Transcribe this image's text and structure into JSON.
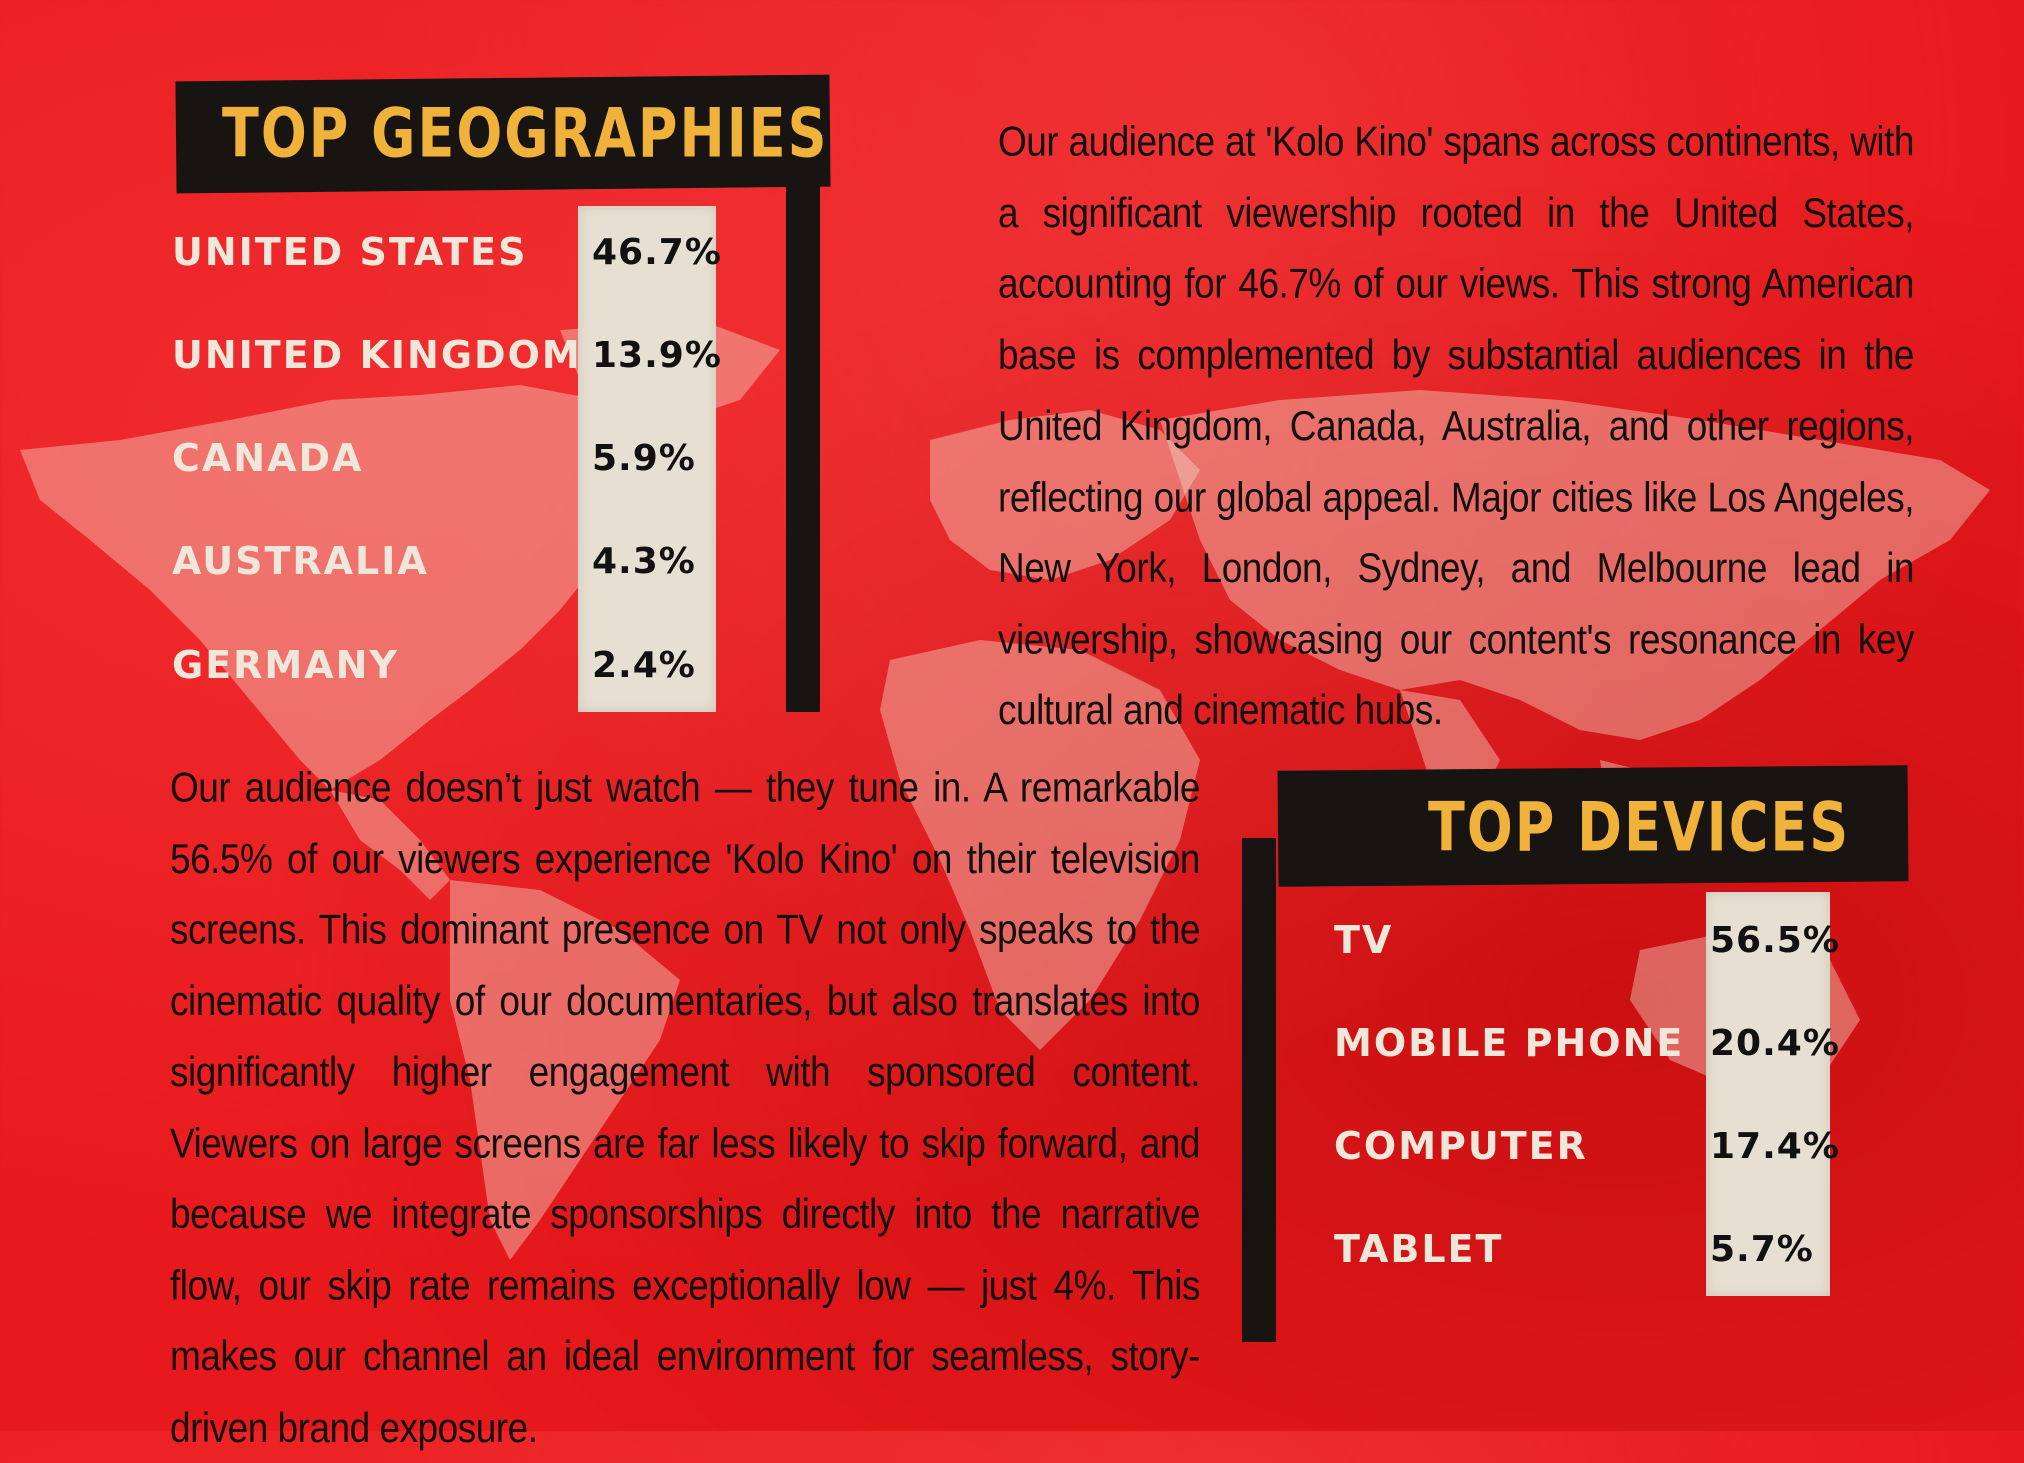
{
  "geographies": {
    "title": "Top Geographies",
    "items": [
      {
        "label": "United States",
        "value": "46.7%"
      },
      {
        "label": "United Kingdom",
        "value": "13.9%"
      },
      {
        "label": "Canada",
        "value": "5.9%"
      },
      {
        "label": "Australia",
        "value": "4.3%"
      },
      {
        "label": "Germany",
        "value": "2.4%"
      }
    ],
    "paragraph": "Our audience at 'Kolo Kino' spans across continents, with a significant viewership rooted in the United States, accounting for 46.7% of our views. This strong American base is complemented by substantial audiences in the United Kingdom, Canada, Australia, and other regions, reflecting our global appeal. Major cities like Los Angeles, New York, London, Sydney, and Melbourne lead in viewership, showcasing our content's resonance in key cultural and cinematic hubs."
  },
  "devices": {
    "title": "Top Devices",
    "items": [
      {
        "label": "TV",
        "value": "56.5%"
      },
      {
        "label": "Mobile Phone",
        "value": "20.4%"
      },
      {
        "label": "Computer",
        "value": "17.4%"
      },
      {
        "label": "Tablet",
        "value": "5.7%"
      }
    ],
    "paragraph": "Our audience doesn’t just watch — they tune in. A remarkable 56.5% of our viewers experience 'Kolo Kino' on their television screens. This dominant presence on TV not only speaks to the cinematic quality of our documentaries, but also translates into significantly higher engagement with sponsored content. Viewers on large screens are far less likely to skip forward, and because we integrate sponsorships directly into the narrative flow, our skip rate remains exceptionally low — just 4%. This makes our channel an ideal environment for seamless, story-driven brand exposure."
  },
  "colors": {
    "background": "#e8191c",
    "title": "#f0b23a",
    "brush": "#171412",
    "paper": "#e7e0d2",
    "label": "#efe8da"
  }
}
